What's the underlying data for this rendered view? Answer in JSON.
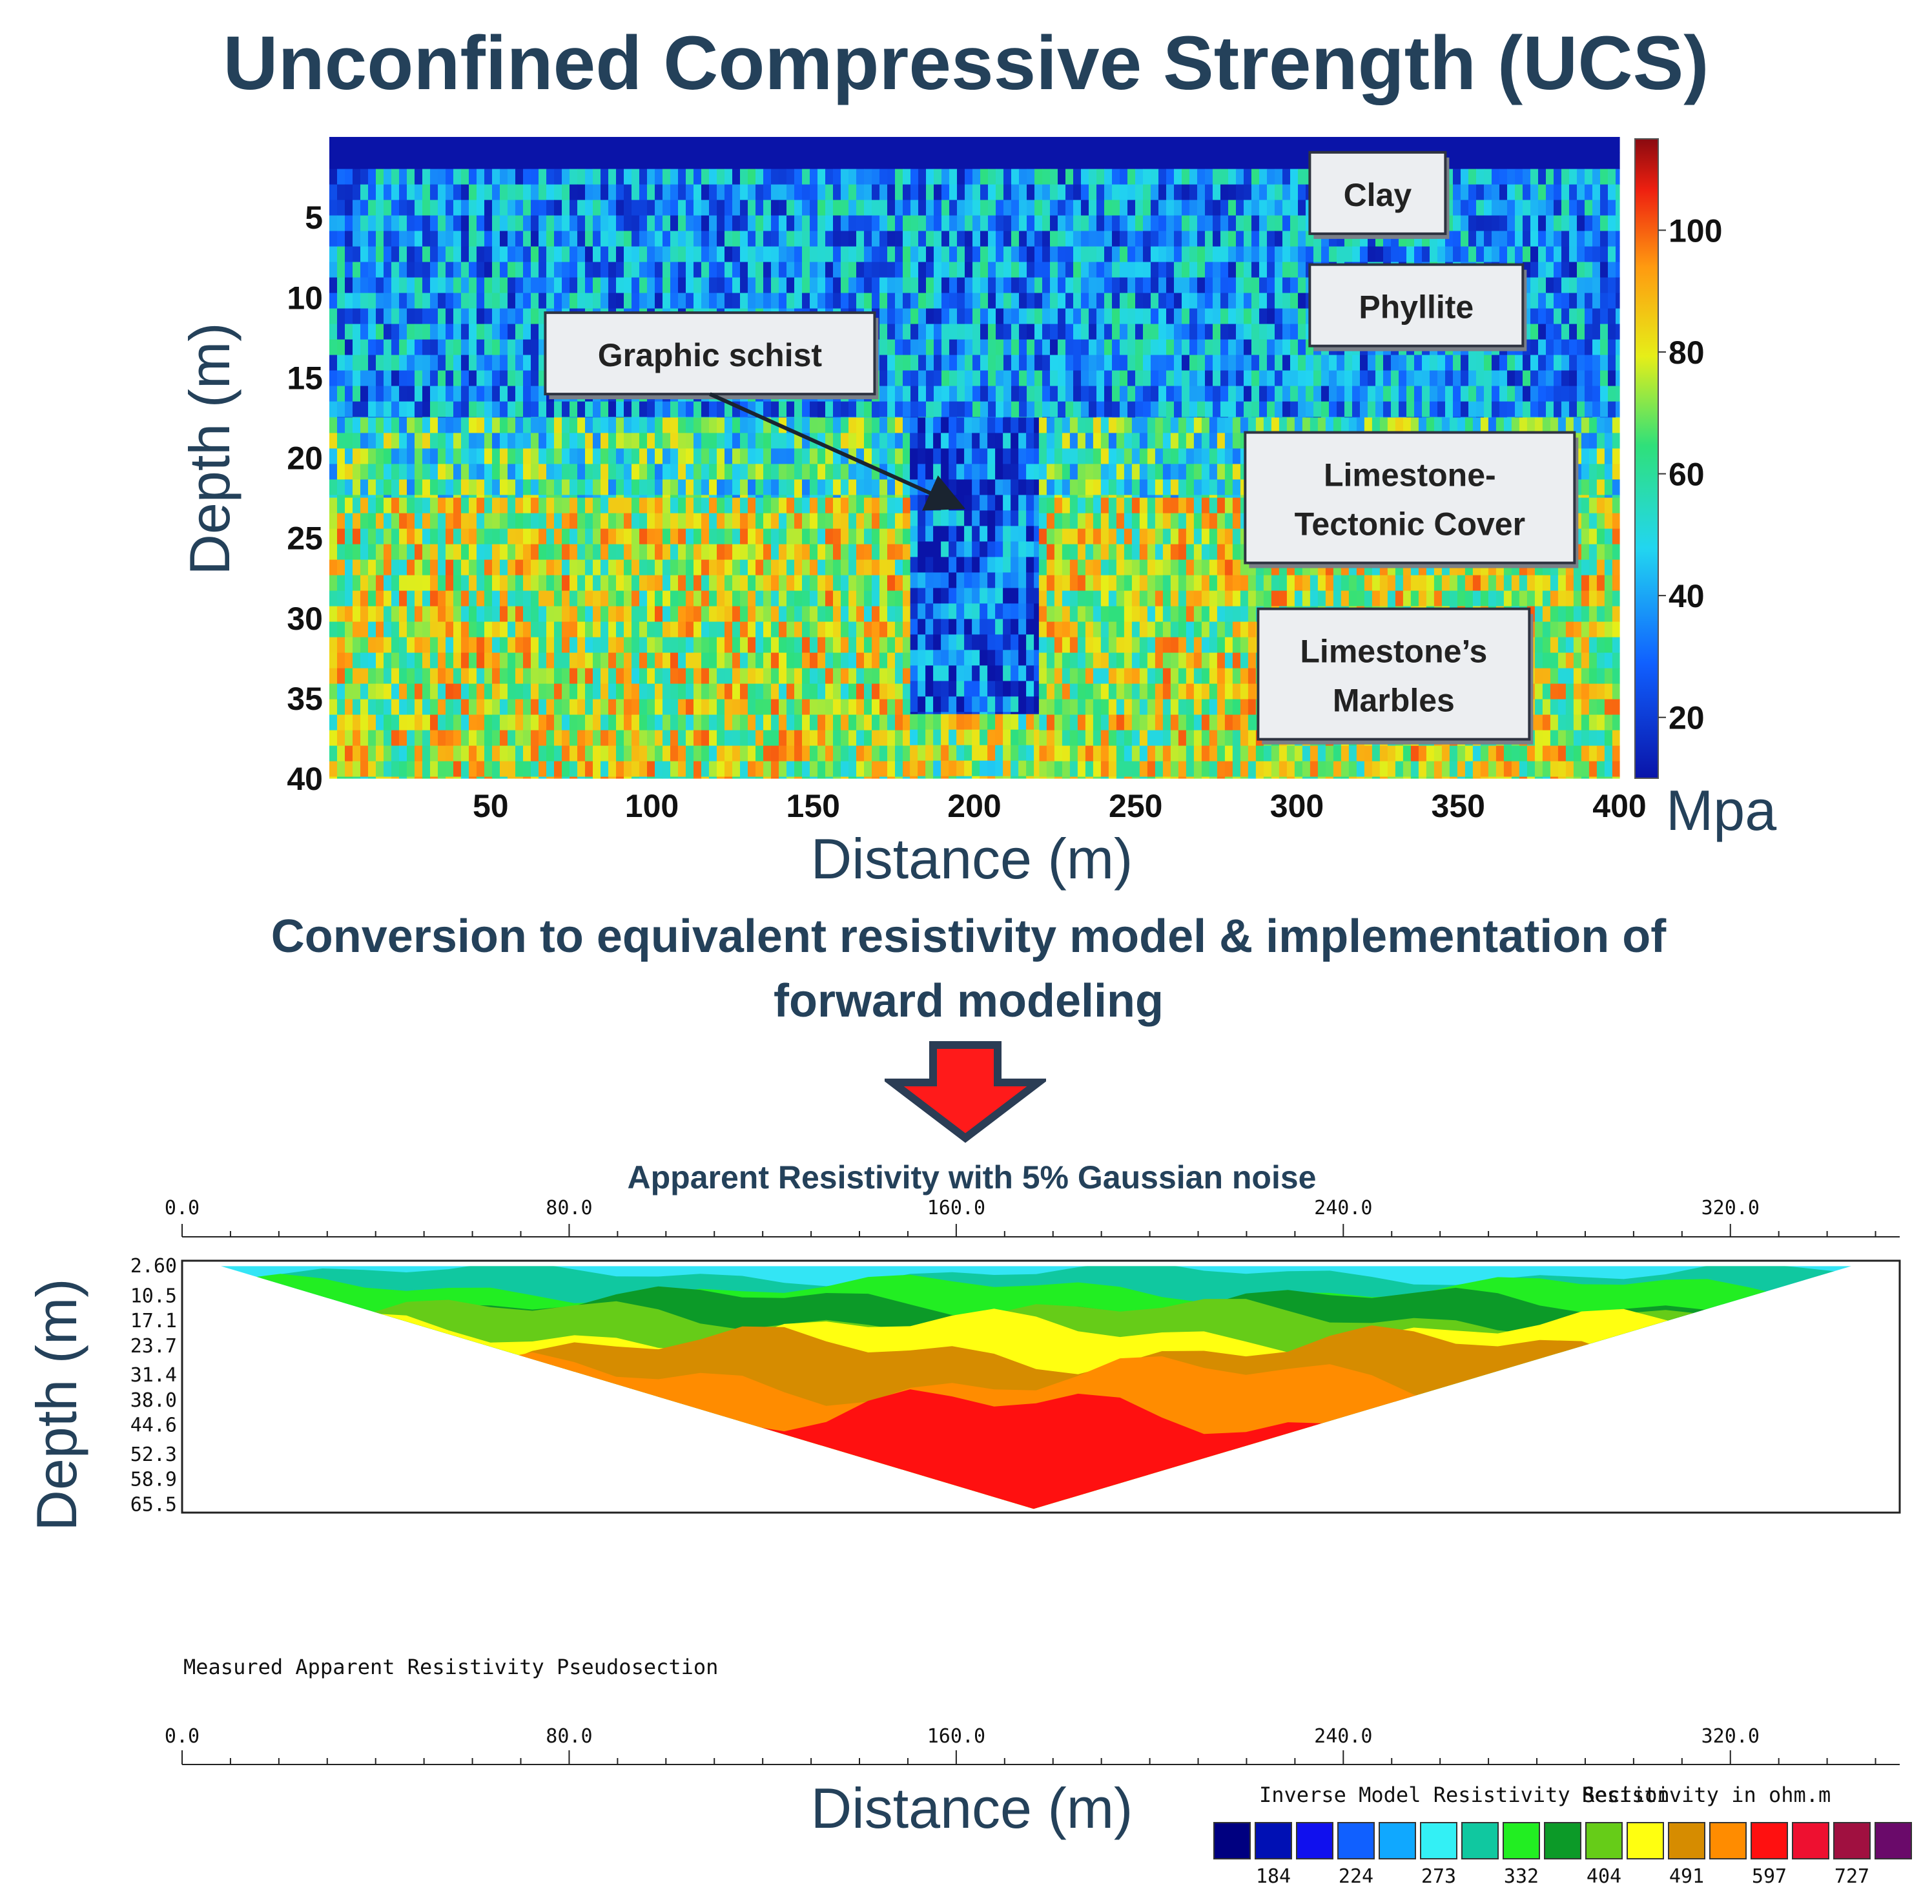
{
  "title": "Unconfined Compressive Strength (UCS)",
  "caption_line1": "Conversion to equivalent resistivity model & implementation of",
  "caption_line2": "forward modeling",
  "colors": {
    "title": "#24415a",
    "arrow_fill": "#ff1a1a",
    "arrow_border": "#2b3d55"
  },
  "chart_data": [
    {
      "type": "heatmap",
      "xlabel": "Distance (m)",
      "ylabel": "Depth (m)",
      "xlim": [
        0,
        400
      ],
      "ylim": [
        0,
        40
      ],
      "y_inverted": true,
      "x_ticks": [
        50,
        100,
        150,
        200,
        250,
        300,
        350,
        400
      ],
      "y_ticks": [
        5,
        10,
        15,
        20,
        25,
        30,
        35,
        40
      ],
      "colorbar": {
        "unit": "Mpa",
        "range": [
          10,
          115
        ],
        "ticks": [
          20,
          40,
          60,
          80,
          100
        ]
      },
      "regions": [
        {
          "x": [
            0,
            400
          ],
          "y": [
            0,
            2
          ],
          "value": 10
        },
        {
          "x": [
            0,
            400
          ],
          "y": [
            2,
            17.5
          ],
          "value": 38
        },
        {
          "x": [
            0,
            180
          ],
          "y": [
            17.5,
            22.5
          ],
          "value": 58
        },
        {
          "x": [
            180,
            220
          ],
          "y": [
            17.5,
            36
          ],
          "value": 28
        },
        {
          "x": [
            220,
            400
          ],
          "y": [
            17.5,
            22.5
          ],
          "value": 58
        },
        {
          "x": [
            0,
            180
          ],
          "y": [
            22.5,
            40
          ],
          "value": 75
        },
        {
          "x": [
            220,
            400
          ],
          "y": [
            22.5,
            40
          ],
          "value": 75
        },
        {
          "x": [
            180,
            220
          ],
          "y": [
            36,
            40
          ],
          "value": 70
        }
      ],
      "annotations": [
        {
          "label": "Clay",
          "x": 325,
          "y": 3.5
        },
        {
          "label": "Phyllite",
          "x": 337,
          "y": 10.5
        },
        {
          "label": "Graphic schist",
          "x": 118,
          "y": 13.5,
          "arrow_to": [
            195,
            23
          ]
        },
        {
          "label_lines": [
            "Limestone-",
            "Tectonic Cover"
          ],
          "x": 335,
          "y": 22.5
        },
        {
          "label_lines": [
            "Limestone’s",
            "Marbles"
          ],
          "x": 330,
          "y": 33.5
        }
      ]
    },
    {
      "type": "heatmap",
      "title": "Apparent Resistivity with 5% Gaussian noise",
      "xlabel": "Distance (m)",
      "ylabel": "Depth (m)",
      "xlim": [
        0,
        355
      ],
      "ylim": [
        2.6,
        68
      ],
      "y_inverted": true,
      "x_ticks": [
        "0.0",
        "80.0",
        "160.0",
        "240.0",
        "320.0"
      ],
      "y_ticks": [
        "2.60",
        "10.5",
        "17.1",
        "23.7",
        "31.4",
        "38.0",
        "44.6",
        "52.3",
        "58.9",
        "65.5"
      ],
      "section_label": "Measured Apparent Resistivity Pseudosection",
      "bottom_axis_ticks": [
        "0.0",
        "80.0",
        "160.0",
        "240.0",
        "320.0"
      ],
      "pseudosection": {
        "left_x": 8,
        "right_x": 345,
        "top_depth": 3,
        "apex_x": 176,
        "apex_depth": 67
      },
      "bands": [
        {
          "depth": [
            3,
            5
          ],
          "color": "#33e5f5"
        },
        {
          "depth": [
            5,
            9
          ],
          "color": "#10c8a0"
        },
        {
          "depth": [
            9,
            12.5
          ],
          "color": "#22ee22"
        },
        {
          "depth": [
            12.5,
            16
          ],
          "color": "#0c9a28"
        },
        {
          "depth": [
            16,
            20
          ],
          "color": "#66cc18"
        },
        {
          "depth": [
            20,
            25
          ],
          "color": "#ffff10"
        },
        {
          "depth": [
            25,
            33
          ],
          "color": "#d68c00"
        },
        {
          "depth": [
            33,
            42
          ],
          "color": "#ff8c00"
        },
        {
          "depth": [
            42,
            68
          ],
          "color": "#ff1010"
        }
      ],
      "legend": {
        "title": "Inverse Model Resistivity Section",
        "unit": "Resistivity in ohm.m",
        "colors": [
          "#000080",
          "#0010b4",
          "#1010ee",
          "#1060ff",
          "#10a8ff",
          "#33f0f5",
          "#10c8a0",
          "#22ee22",
          "#0c9a28",
          "#66cc18",
          "#ffff10",
          "#d68c00",
          "#ff8c00",
          "#ff1010",
          "#ee1030",
          "#a01040",
          "#6a0a6a"
        ],
        "labels": [
          "184",
          "224",
          "273",
          "332",
          "404",
          "491",
          "597",
          "727"
        ]
      }
    }
  ]
}
